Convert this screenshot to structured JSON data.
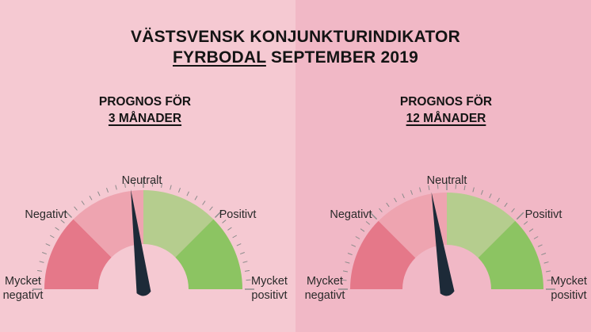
{
  "header": {
    "title_line1": "VÄSTSVENSK KONJUNKTURINDIKATOR",
    "region": "FYRBODAL",
    "period": "SEPTEMBER 2019"
  },
  "panels": [
    {
      "heading": "PROGNOS FÖR",
      "horizon": "3 MÅNADER",
      "needle_value": -0.08,
      "labels": {
        "very_negative_1": "Mycket",
        "very_negative_2": "negativt",
        "negative": "Negativt",
        "neutral": "Neutralt",
        "positive": "Positivt",
        "very_positive_1": "Mycket",
        "very_positive_2": "positivt"
      }
    },
    {
      "heading": "PROGNOS FÖR",
      "horizon": "12 MÅNADER",
      "needle_value": -0.1,
      "labels": {
        "very_negative_1": "Mycket",
        "very_negative_2": "negativt",
        "negative": "Negativt",
        "neutral": "Neutralt",
        "positive": "Positivt",
        "very_positive_1": "Mycket",
        "very_positive_2": "positivt"
      }
    }
  ],
  "colors": {
    "background_left": "#f5c9d2",
    "background_right": "#f1b8c6",
    "very_negative": "#e57889",
    "negative": "#eea4b0",
    "positive": "#b5cd8e",
    "very_positive": "#8cc462",
    "needle": "#1d2a38"
  }
}
